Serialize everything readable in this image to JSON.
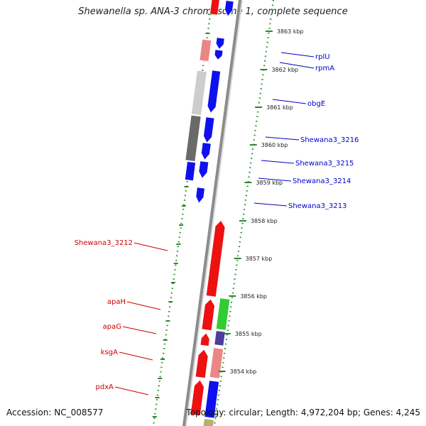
{
  "title": "Shewanella sp. ANA-3 chromosome 1, complete sequence",
  "footer": {
    "accession": "Accession: NC_008577",
    "topology": "Topology: circular; Length: 4,972,204 bp; Genes: 4,245"
  },
  "colors": {
    "backbone": "#8c8c8c",
    "ruler_dots": "#2a8a2a",
    "forward_label": "#0000cc",
    "reverse_label": "#cc0000",
    "blue": "#1010ee",
    "red": "#ee1111",
    "pink": "#ec8585",
    "light_gray": "#cdcdcd",
    "dark_gray": "#6a6a6a",
    "green": "#33cc33",
    "purple": "#4a3f9a",
    "olive": "#b5b070"
  },
  "axis": {
    "unit": "kbp",
    "ticks": [
      3863,
      3862,
      3861,
      3860,
      3859,
      3858,
      3857,
      3856,
      3855,
      3854
    ]
  },
  "genes_forward": [
    {
      "label": "rplU",
      "color": "blue"
    },
    {
      "label": "rpmA",
      "color": "blue"
    },
    {
      "label": "obgE",
      "color": "blue"
    },
    {
      "label": "Shewana3_3216",
      "color": "blue"
    },
    {
      "label": "Shewana3_3215",
      "color": "blue"
    },
    {
      "label": "Shewana3_3214",
      "color": "blue"
    },
    {
      "label": "Shewana3_3213",
      "color": "blue"
    }
  ],
  "genes_reverse": [
    {
      "label": "Shewana3_3212",
      "color": "red"
    },
    {
      "label": "apaH",
      "color": "red"
    },
    {
      "label": "apaG",
      "color": "red"
    },
    {
      "label": "ksgA",
      "color": "red"
    },
    {
      "label": "pdxA",
      "color": "red"
    }
  ]
}
